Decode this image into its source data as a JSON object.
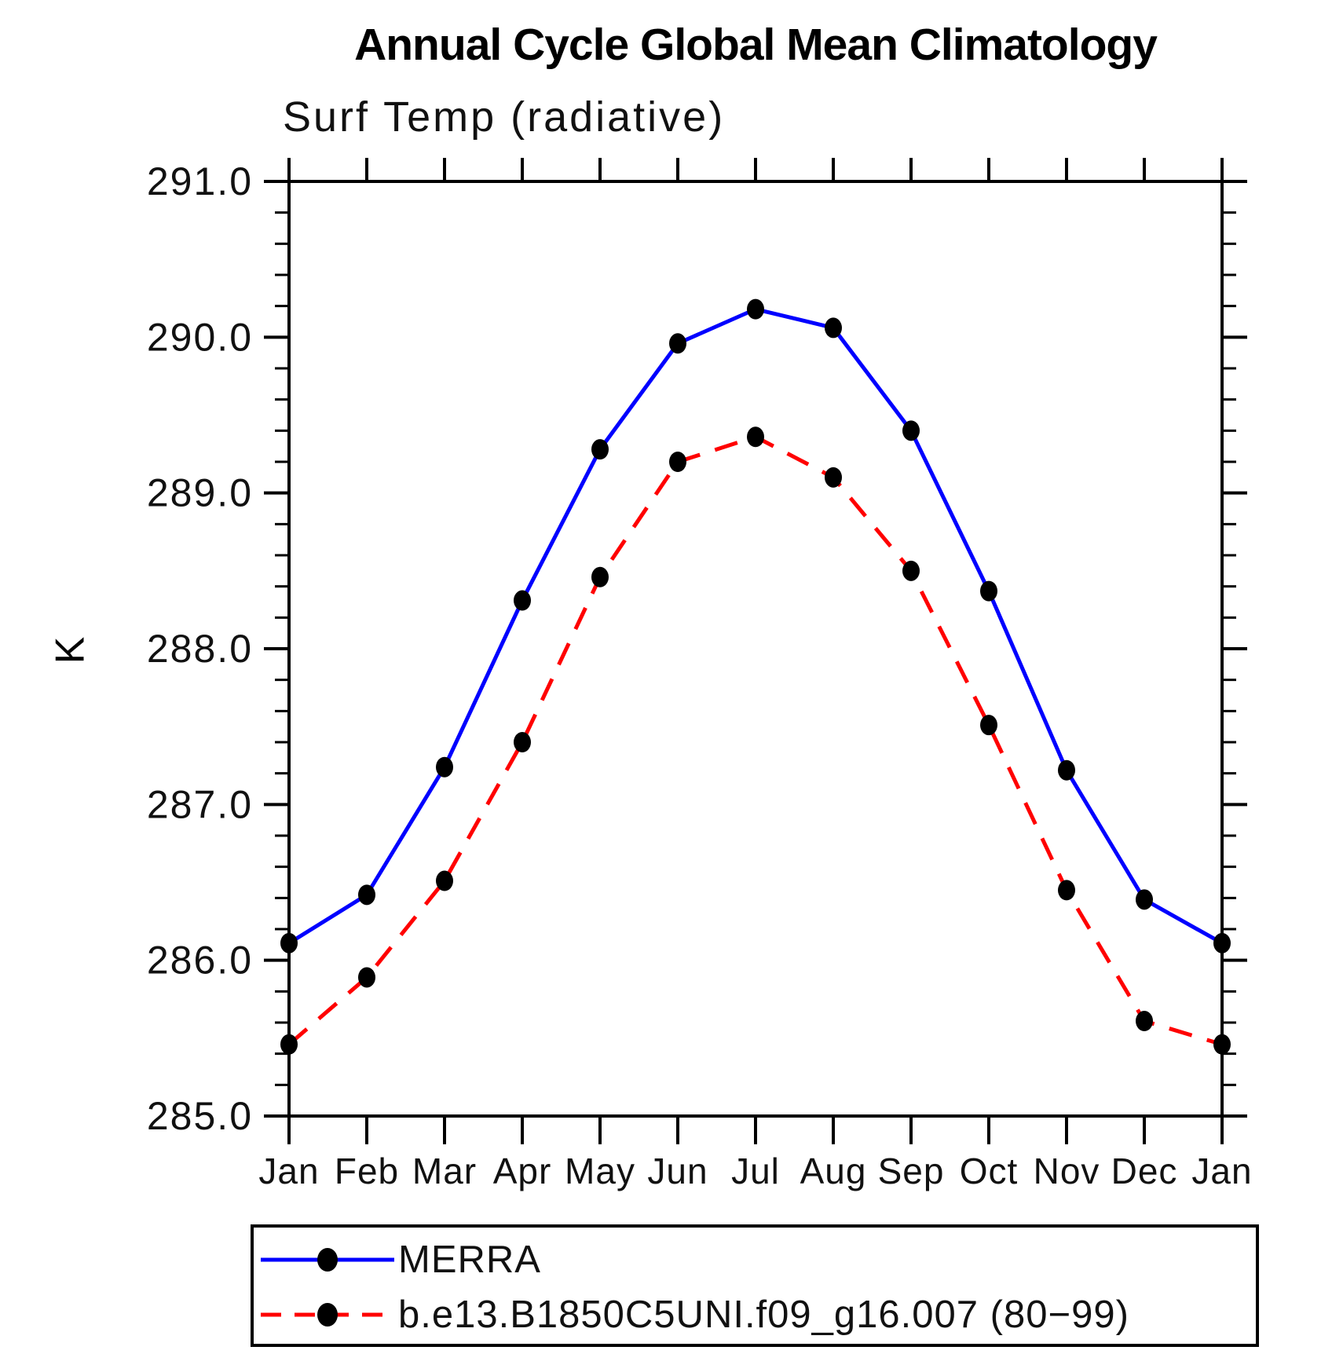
{
  "chart_data": {
    "type": "line",
    "title": "Annual Cycle Global Mean Climatology",
    "subtitle": "Surf Temp (radiative)",
    "xlabel": "",
    "ylabel": "K",
    "ylim": [
      285.0,
      291.0
    ],
    "y_major_step": 1.0,
    "y_minor_step": 0.2,
    "y_tick_labels": [
      "285.0",
      "286.0",
      "287.0",
      "288.0",
      "289.0",
      "290.0",
      "291.0"
    ],
    "categories": [
      "Jan",
      "Feb",
      "Mar",
      "Apr",
      "May",
      "Jun",
      "Jul",
      "Aug",
      "Sep",
      "Oct",
      "Nov",
      "Dec",
      "Jan"
    ],
    "grid": false,
    "legend_position": "bottom-left-box",
    "marker": "filled-circle",
    "marker_color": "#000000",
    "series": [
      {
        "name": "MERRA",
        "color": "#0000ff",
        "line_style": "solid",
        "values": [
          286.11,
          286.42,
          287.24,
          288.31,
          289.28,
          289.96,
          290.18,
          290.06,
          289.4,
          288.37,
          287.22,
          286.39,
          286.11
        ]
      },
      {
        "name": "b.e13.B1850C5UNI.f09_g16.007 (80−99)",
        "color": "#ff0000",
        "line_style": "dashed",
        "values": [
          285.46,
          285.89,
          286.51,
          287.4,
          288.46,
          289.2,
          289.36,
          289.1,
          288.5,
          287.51,
          286.45,
          285.61,
          285.46
        ]
      }
    ]
  }
}
